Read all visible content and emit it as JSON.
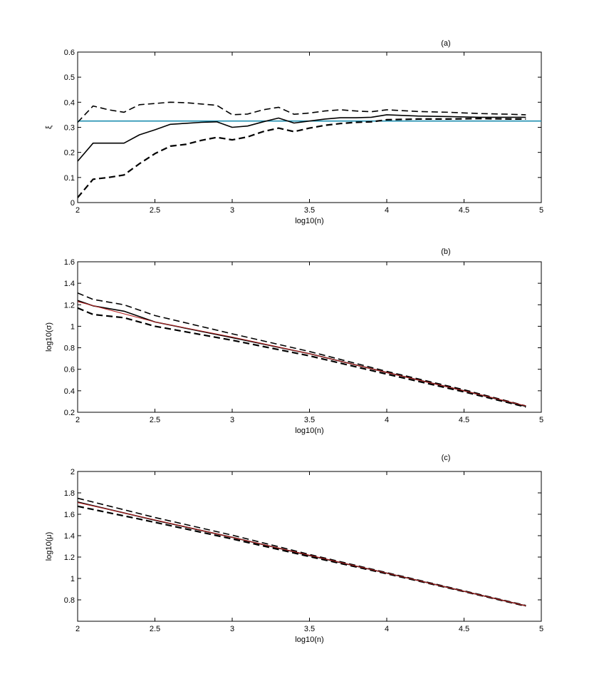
{
  "colors": {
    "dashed": "#000000",
    "solid": "#000000",
    "reference": "#1f8fb0",
    "fit": "#b22222",
    "frame": "#000000"
  },
  "chart_data": [
    {
      "type": "line",
      "tag": "(a)",
      "xlabel": "log10(n)",
      "ylabel": "ξ",
      "xlim": [
        2,
        5
      ],
      "ylim": [
        0,
        0.6
      ],
      "xticks": [
        2,
        2.5,
        3,
        3.5,
        4,
        4.5,
        5
      ],
      "xtick_labels": [
        "2",
        "2.5",
        "3",
        "3.5",
        "4",
        "4.5",
        "5"
      ],
      "yticks": [
        0,
        0.1,
        0.2,
        0.3,
        0.4,
        0.5,
        0.6
      ],
      "ytick_labels": [
        "0",
        "0.1",
        "0.2",
        "0.3",
        "0.4",
        "0.5",
        "0.6"
      ],
      "hline": 0.325,
      "series": [
        {
          "style": "upper-dashed",
          "x": [
            2,
            2.1,
            2.2,
            2.3,
            2.4,
            2.5,
            2.6,
            2.7,
            2.8,
            2.9,
            3.0,
            3.1,
            3.2,
            3.3,
            3.4,
            3.5,
            3.6,
            3.7,
            3.8,
            3.9,
            4.0,
            4.2,
            4.4,
            4.6,
            4.8,
            4.9
          ],
          "y": [
            0.32,
            0.385,
            0.37,
            0.36,
            0.39,
            0.395,
            0.4,
            0.398,
            0.393,
            0.388,
            0.35,
            0.353,
            0.37,
            0.38,
            0.352,
            0.357,
            0.365,
            0.37,
            0.365,
            0.362,
            0.37,
            0.363,
            0.36,
            0.355,
            0.352,
            0.35
          ]
        },
        {
          "style": "median-solid",
          "x": [
            2,
            2.1,
            2.2,
            2.3,
            2.4,
            2.5,
            2.6,
            2.7,
            2.8,
            2.9,
            3.0,
            3.1,
            3.2,
            3.3,
            3.4,
            3.5,
            3.6,
            3.7,
            3.8,
            3.9,
            4.0,
            4.2,
            4.4,
            4.6,
            4.8,
            4.9
          ],
          "y": [
            0.165,
            0.237,
            0.237,
            0.237,
            0.27,
            0.29,
            0.312,
            0.316,
            0.32,
            0.322,
            0.3,
            0.305,
            0.322,
            0.337,
            0.317,
            0.325,
            0.333,
            0.338,
            0.338,
            0.34,
            0.35,
            0.345,
            0.343,
            0.34,
            0.34,
            0.34
          ]
        },
        {
          "style": "lower-dashed",
          "x": [
            2,
            2.1,
            2.2,
            2.3,
            2.4,
            2.5,
            2.6,
            2.7,
            2.8,
            2.9,
            3.0,
            3.1,
            3.2,
            3.3,
            3.4,
            3.5,
            3.6,
            3.7,
            3.8,
            3.9,
            4.0,
            4.2,
            4.4,
            4.6,
            4.8,
            4.9
          ],
          "y": [
            0.02,
            0.093,
            0.1,
            0.11,
            0.155,
            0.195,
            0.225,
            0.232,
            0.248,
            0.26,
            0.25,
            0.262,
            0.283,
            0.297,
            0.283,
            0.297,
            0.308,
            0.315,
            0.32,
            0.322,
            0.33,
            0.333,
            0.333,
            0.335,
            0.333,
            0.333
          ]
        }
      ]
    },
    {
      "type": "line",
      "tag": "(b)",
      "xlabel": "log10(n)",
      "ylabel": "log10(σ)",
      "xlim": [
        2,
        5
      ],
      "ylim": [
        0.2,
        1.6
      ],
      "xticks": [
        2,
        2.5,
        3,
        3.5,
        4,
        4.5,
        5
      ],
      "xtick_labels": [
        "2",
        "2.5",
        "3",
        "3.5",
        "4",
        "4.5",
        "5"
      ],
      "yticks": [
        0.2,
        0.4,
        0.6,
        0.8,
        1,
        1.2,
        1.4,
        1.6
      ],
      "ytick_labels": [
        "0.2",
        "0.4",
        "0.6",
        "0.8",
        "1",
        "1.2",
        "1.4",
        "1.6"
      ],
      "fit": {
        "x": [
          2,
          2.5,
          3,
          3.5,
          4,
          4.5,
          4.9
        ],
        "y": [
          1.23,
          1.04,
          0.9,
          0.745,
          0.57,
          0.4,
          0.26
        ]
      },
      "series": [
        {
          "style": "upper-dashed",
          "x": [
            2,
            2.1,
            2.3,
            2.5,
            3.0,
            3.5,
            4.0,
            4.5,
            4.9
          ],
          "y": [
            1.31,
            1.25,
            1.2,
            1.1,
            0.93,
            0.765,
            0.58,
            0.41,
            0.26
          ]
        },
        {
          "style": "median-solid",
          "x": [
            2,
            2.1,
            2.3,
            2.5,
            3.0,
            3.5,
            4.0,
            4.5,
            4.9
          ],
          "y": [
            1.24,
            1.19,
            1.14,
            1.04,
            0.895,
            0.745,
            0.57,
            0.4,
            0.255
          ]
        },
        {
          "style": "lower-dashed",
          "x": [
            2,
            2.1,
            2.3,
            2.5,
            3.0,
            3.5,
            4.0,
            4.5,
            4.9
          ],
          "y": [
            1.17,
            1.11,
            1.08,
            1.0,
            0.87,
            0.725,
            0.555,
            0.39,
            0.25
          ]
        }
      ]
    },
    {
      "type": "line",
      "tag": "(c)",
      "xlabel": "log10(n)",
      "ylabel": "log10(μ)",
      "xlim": [
        2,
        5
      ],
      "ylim": [
        0.6,
        2
      ],
      "xticks": [
        2,
        2.5,
        3,
        3.5,
        4,
        4.5,
        5
      ],
      "xtick_labels": [
        "2",
        "2.5",
        "3",
        "3.5",
        "4",
        "4.5",
        "5"
      ],
      "yticks": [
        0.8,
        1,
        1.2,
        1.4,
        1.6,
        1.8,
        2
      ],
      "ytick_labels": [
        "0.8",
        "1",
        "1.2",
        "1.4",
        "1.6",
        "1.8",
        "2"
      ],
      "fit": {
        "x": [
          2,
          3,
          4,
          4.9
        ],
        "y": [
          1.71,
          1.385,
          1.05,
          0.745
        ]
      },
      "series": [
        {
          "style": "upper-dashed",
          "x": [
            2,
            2.5,
            3,
            3.5,
            4,
            4.5,
            4.9
          ],
          "y": [
            1.75,
            1.57,
            1.405,
            1.225,
            1.055,
            0.885,
            0.748
          ]
        },
        {
          "style": "median-solid",
          "x": [
            2,
            2.5,
            3,
            3.5,
            4,
            4.5,
            4.9
          ],
          "y": [
            1.715,
            1.545,
            1.385,
            1.215,
            1.05,
            0.88,
            0.745
          ]
        },
        {
          "style": "lower-dashed",
          "x": [
            2,
            2.5,
            3,
            3.5,
            4,
            4.5,
            4.9
          ],
          "y": [
            1.675,
            1.525,
            1.37,
            1.205,
            1.045,
            0.878,
            0.742
          ]
        }
      ]
    }
  ]
}
